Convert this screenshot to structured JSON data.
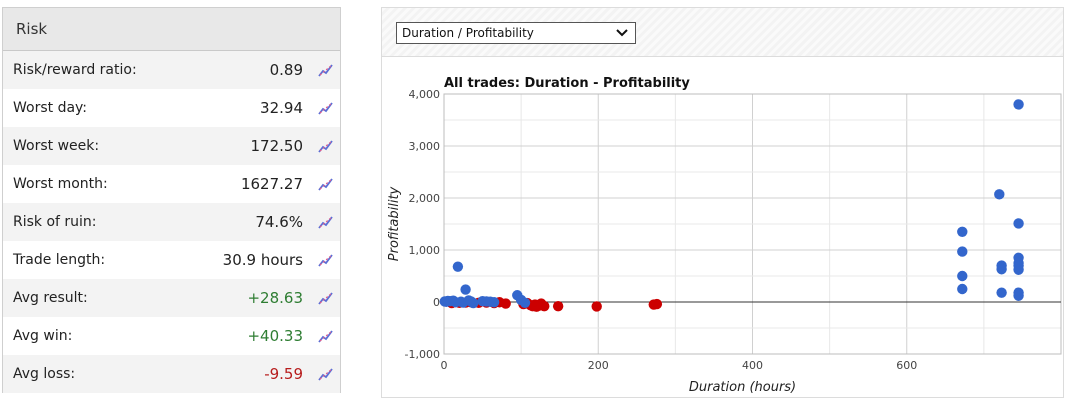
{
  "risk": {
    "title": "Risk",
    "rows": [
      {
        "label": "Risk/reward ratio:",
        "value": "0.89",
        "tone": "normal"
      },
      {
        "label": "Worst day:",
        "value": "32.94",
        "tone": "normal"
      },
      {
        "label": "Worst week:",
        "value": "172.50",
        "tone": "normal"
      },
      {
        "label": "Worst month:",
        "value": "1627.27",
        "tone": "normal"
      },
      {
        "label": "Risk of ruin:",
        "value": "74.6%",
        "tone": "normal"
      },
      {
        "label": "Trade length:",
        "value": "30.9 hours",
        "tone": "normal"
      },
      {
        "label": "Avg result:",
        "value": "+28.63",
        "tone": "pos"
      },
      {
        "label": "Avg win:",
        "value": "+40.33",
        "tone": "pos"
      },
      {
        "label": "Avg loss:",
        "value": "-9.59",
        "tone": "neg"
      }
    ],
    "row_icon": "chart-icon"
  },
  "selector": {
    "selected": "Duration / Profitability"
  },
  "chart_data": {
    "type": "scatter",
    "title": "All trades: Duration - Profitability",
    "xlabel": "Duration (hours)",
    "ylabel": "Profitability",
    "xlim": [
      0,
      800
    ],
    "ylim": [
      -1000,
      4000
    ],
    "xticks": [
      0,
      200,
      400,
      600
    ],
    "yticks": [
      -1000,
      0,
      1000,
      2000,
      3000,
      4000
    ],
    "ytick_labels": [
      "-1,000",
      "0",
      "1,000",
      "2,000",
      "3,000",
      "4,000"
    ],
    "grid": true,
    "series": [
      {
        "color": "#3366cc",
        "points": [
          [
            1,
            10
          ],
          [
            3,
            5
          ],
          [
            5,
            20
          ],
          [
            8,
            15
          ],
          [
            12,
            25
          ],
          [
            15,
            -5
          ],
          [
            18,
            680
          ],
          [
            22,
            5
          ],
          [
            25,
            -10
          ],
          [
            28,
            240
          ],
          [
            32,
            30
          ],
          [
            35,
            10
          ],
          [
            38,
            -20
          ],
          [
            50,
            15
          ],
          [
            55,
            10
          ],
          [
            60,
            5
          ],
          [
            65,
            -5
          ],
          [
            95,
            130
          ],
          [
            100,
            40
          ],
          [
            105,
            -15
          ],
          [
            672,
            1350
          ],
          [
            672,
            970
          ],
          [
            672,
            500
          ],
          [
            672,
            250
          ],
          [
            720,
            2070
          ],
          [
            723,
            700
          ],
          [
            723,
            630
          ],
          [
            723,
            180
          ],
          [
            745,
            3800
          ],
          [
            745,
            1510
          ],
          [
            745,
            850
          ],
          [
            745,
            750
          ],
          [
            745,
            700
          ],
          [
            745,
            620
          ],
          [
            745,
            180
          ],
          [
            745,
            120
          ]
        ]
      },
      {
        "color": "#cc0000",
        "points": [
          [
            10,
            -20
          ],
          [
            20,
            -15
          ],
          [
            28,
            -10
          ],
          [
            35,
            -5
          ],
          [
            45,
            -15
          ],
          [
            55,
            -10
          ],
          [
            65,
            -20
          ],
          [
            72,
            -5
          ],
          [
            80,
            -30
          ],
          [
            103,
            -40
          ],
          [
            108,
            -20
          ],
          [
            112,
            -60
          ],
          [
            115,
            -80
          ],
          [
            118,
            -50
          ],
          [
            120,
            -90
          ],
          [
            123,
            -70
          ],
          [
            126,
            -30
          ],
          [
            130,
            -80
          ],
          [
            148,
            -80
          ],
          [
            198,
            -85
          ],
          [
            272,
            -50
          ],
          [
            276,
            -40
          ]
        ]
      }
    ]
  }
}
